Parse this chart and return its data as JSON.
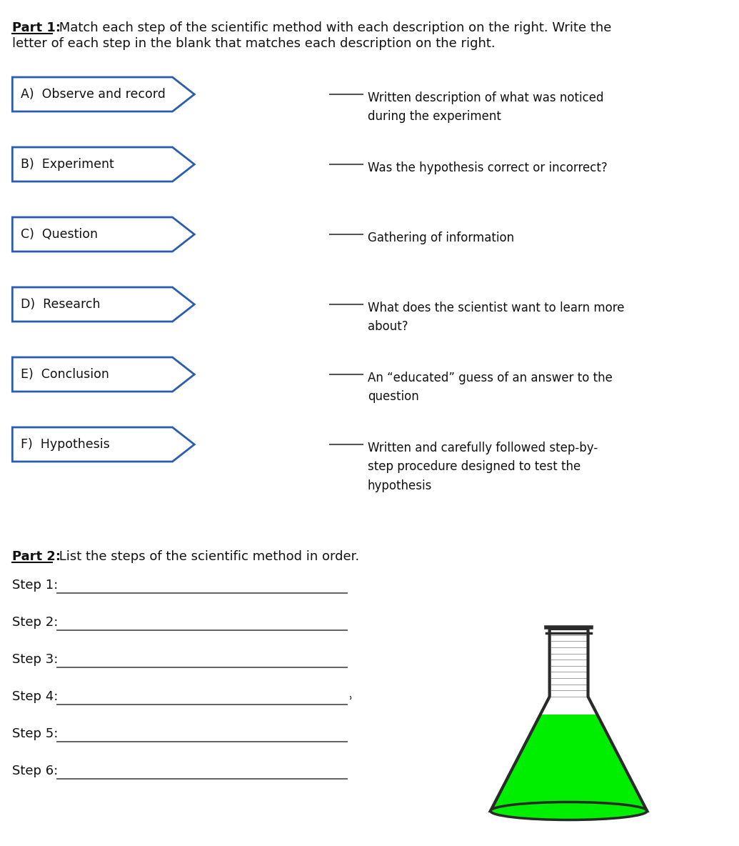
{
  "background_color": "#ffffff",
  "text_color": "#111111",
  "arrow_border_color": "#2a5db0",
  "arrow_fill_color": "#ffffff",
  "arrow_items": [
    "A)  Observe and record",
    "B)  Experiment",
    "C)  Question",
    "D)  Research",
    "E)  Conclusion",
    "F)  Hypothesis"
  ],
  "descriptions": [
    "Written description of what was noticed\nduring the experiment",
    "Was the hypothesis correct or incorrect?",
    "Gathering of information",
    "What does the scientist want to learn more\nabout?",
    "An “educated” guess of an answer to the\nquestion",
    "Written and carefully followed step-by-\nstep procedure designed to test the\nhypothesis"
  ],
  "steps": [
    "Step 1:",
    "Step 2:",
    "Step 3:",
    "Step 4:",
    "Step 5:",
    "Step 6:"
  ],
  "part1_bold": "Part 1:",
  "part1_rest": " Match each step of the scientific method with each description on the right. Write the",
  "part1_line2": "letter of each step in the blank that matches each description on the right.",
  "part2_bold": "Part 2:",
  "part2_rest": " List the steps of the scientific method in order."
}
